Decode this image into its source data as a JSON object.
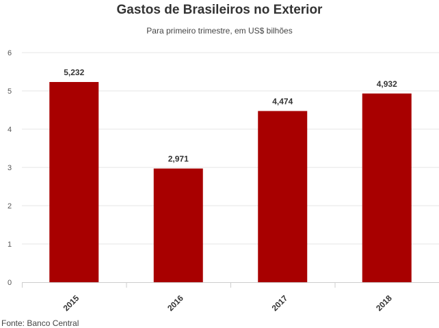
{
  "title": "Gastos de Brasileiros no Exterior",
  "subtitle": "Para primeiro trimestre, em US$ bilhões",
  "source": "Fonte: Banco Central",
  "chart_data": {
    "type": "bar",
    "categories": [
      "2015",
      "2016",
      "2017",
      "2018"
    ],
    "values": [
      5.232,
      2.971,
      4.474,
      4.932
    ],
    "data_labels": [
      "5,232",
      "2,971",
      "4,474",
      "4,932"
    ],
    "yticks": [
      "0",
      "1",
      "2",
      "3",
      "4",
      "5",
      "6"
    ],
    "ylim": [
      0,
      6
    ],
    "grid": true,
    "bar_color": "#a80000",
    "grid_color": "#e6e6e6",
    "axis_color": "#cccccc"
  }
}
